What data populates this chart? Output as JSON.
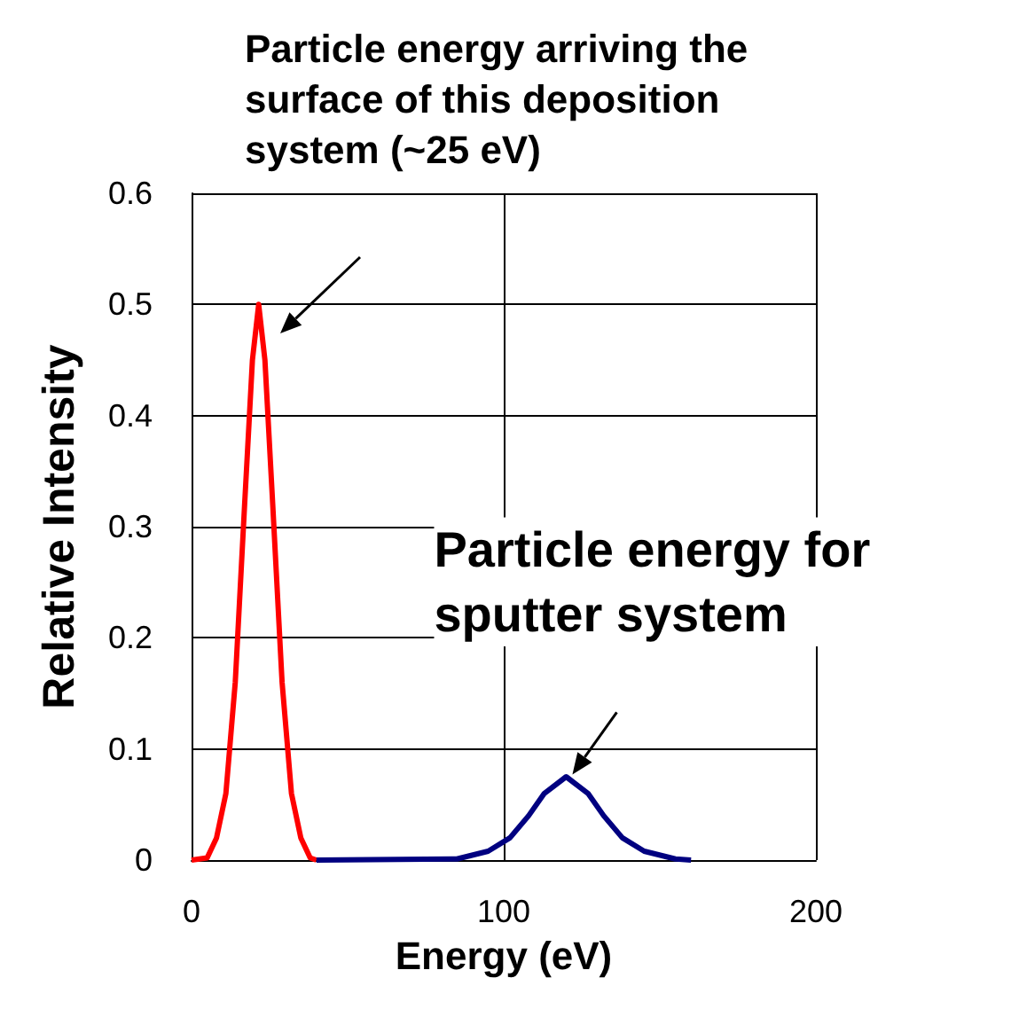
{
  "chart_data": {
    "type": "line",
    "xlabel": "Energy (eV)",
    "ylabel": "Relative Intensity",
    "xlim": [
      0,
      200
    ],
    "xticks": [
      0,
      100,
      200
    ],
    "ylim": [
      0,
      0.6
    ],
    "yticks": [
      0,
      0.1,
      0.2,
      0.3,
      0.4,
      0.5,
      0.6
    ],
    "grid": true,
    "marker": "none",
    "line_style": "solid",
    "series": [
      {
        "color": "#ff0000",
        "x": [
          0,
          5,
          8,
          11,
          14,
          17,
          19.5,
          21.5,
          23.5,
          26,
          29,
          32,
          35,
          38,
          40
        ],
        "values": [
          0,
          0.002,
          0.02,
          0.06,
          0.16,
          0.32,
          0.45,
          0.5,
          0.45,
          0.32,
          0.16,
          0.06,
          0.02,
          0.002,
          0
        ]
      },
      {
        "color": "#000080",
        "x": [
          40,
          85,
          95,
          102,
          108,
          113,
          120,
          127,
          132,
          138,
          145,
          155,
          160
        ],
        "values": [
          0,
          0.001,
          0.008,
          0.02,
          0.04,
          0.06,
          0.075,
          0.06,
          0.04,
          0.02,
          0.008,
          0.001,
          0
        ]
      }
    ],
    "annotations": [
      "Particle energy arriving the surface of this deposition system (~25 eV)",
      {
        "text": "Particle energy for sputter system",
        "x": 122,
        "y": 0.077
      }
    ]
  }
}
